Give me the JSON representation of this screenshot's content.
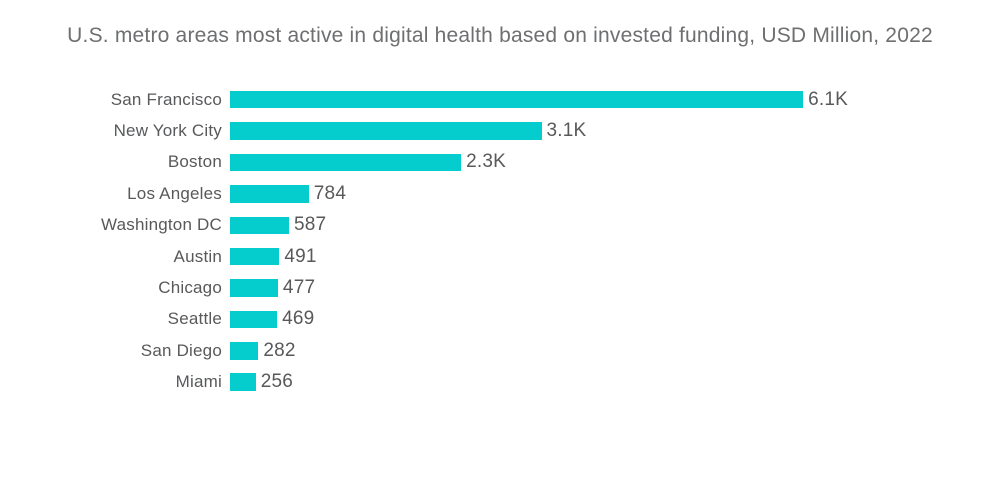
{
  "page": {
    "background_color": "#ffffff"
  },
  "chart_data": {
    "type": "bar",
    "orientation": "horizontal",
    "title": "U.S. metro areas most active in digital health based on invested funding, USD Million, 2022",
    "categories": [
      "San Francisco",
      "New York City",
      "Boston",
      "Los Angeles",
      "Washington DC",
      "Austin",
      "Chicago",
      "Seattle",
      "San Diego",
      "Miami"
    ],
    "values": [
      6100,
      3100,
      2300,
      784,
      587,
      491,
      477,
      469,
      282,
      256
    ],
    "value_labels": [
      "6.1K",
      "3.1K",
      "2.3K",
      "784",
      "587",
      "491",
      "477",
      "469",
      "282",
      "256"
    ],
    "xlabel": "",
    "ylabel": "",
    "xlim": [
      0,
      6100
    ],
    "grid": false,
    "legend": "none",
    "axis_lines": "none",
    "bar_color": "#05cdce",
    "category_label_color": "#58595b",
    "value_label_color": "#58595b",
    "title_color": "#6e6f71"
  }
}
